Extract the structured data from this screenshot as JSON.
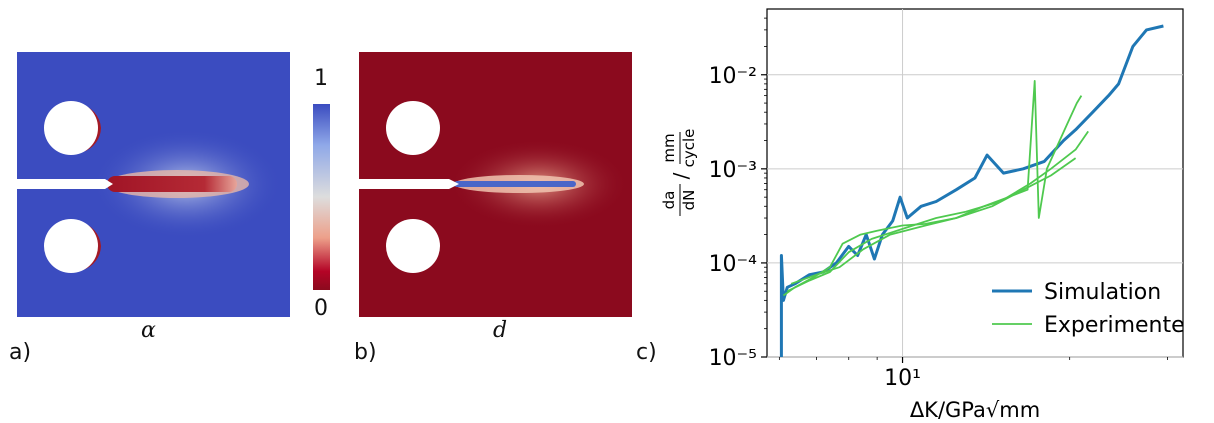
{
  "panels": {
    "a": {
      "label": "a)",
      "symbol": "α"
    },
    "b": {
      "label": "b)",
      "symbol": "d"
    },
    "c": {
      "label": "c)"
    }
  },
  "colorbar": {
    "max_label": "1",
    "min_label": "0"
  },
  "colors": {
    "field_blue": "#3b4cc0",
    "field_red": "#8b0a1e",
    "sim_line": "#1f77b4",
    "exp_line": "#4fc94f"
  },
  "chart_data": {
    "type": "line",
    "xscale": "log",
    "yscale": "log",
    "xlabel": "ΔK/GPa√mm",
    "ylabel": "da/dN / mm/cycle",
    "xlim": [
      5.7,
      32
    ],
    "ylim": [
      1e-05,
      0.05
    ],
    "x_ticks": [
      {
        "value": 10,
        "label": "10¹"
      }
    ],
    "y_ticks": [
      {
        "value": 1e-05,
        "label": "10⁻⁵"
      },
      {
        "value": 0.0001,
        "label": "10⁻⁴"
      },
      {
        "value": 0.001,
        "label": "10⁻³"
      },
      {
        "value": 0.01,
        "label": "10⁻²"
      }
    ],
    "grid": true,
    "legend_position": "bottom-right",
    "series": [
      {
        "name": "Simulation",
        "color": "#1f77b4",
        "points": [
          [
            6.05,
            1e-05
          ],
          [
            6.05,
            0.00012
          ],
          [
            6.1,
            4e-05
          ],
          [
            6.2,
            5.5e-05
          ],
          [
            6.4,
            6e-05
          ],
          [
            6.8,
            7.5e-05
          ],
          [
            7.2,
            8e-05
          ],
          [
            7.6,
            0.0001
          ],
          [
            8.0,
            0.00015
          ],
          [
            8.3,
            0.00012
          ],
          [
            8.6,
            0.0002
          ],
          [
            8.9,
            0.00011
          ],
          [
            9.2,
            0.0002
          ],
          [
            9.6,
            0.00028
          ],
          [
            9.9,
            0.0005
          ],
          [
            10.2,
            0.0003
          ],
          [
            10.8,
            0.0004
          ],
          [
            11.5,
            0.00045
          ],
          [
            12.5,
            0.0006
          ],
          [
            13.5,
            0.0008
          ],
          [
            14.2,
            0.0014
          ],
          [
            15.2,
            0.0009
          ],
          [
            16.5,
            0.001
          ],
          [
            18,
            0.0012
          ],
          [
            19.5,
            0.002
          ],
          [
            20.5,
            0.0026
          ],
          [
            22,
            0.004
          ],
          [
            23.5,
            0.006
          ],
          [
            24.5,
            0.008
          ],
          [
            26,
            0.02
          ],
          [
            27.5,
            0.03
          ],
          [
            29.5,
            0.033
          ]
        ]
      },
      {
        "name": "Experimente",
        "color": "#4fc94f",
        "points": [
          [
            6.1,
            4.5e-05
          ],
          [
            6.4,
            5.5e-05
          ],
          [
            6.9,
            7e-05
          ],
          [
            7.4,
            9e-05
          ],
          [
            7.8,
            0.00016
          ],
          [
            8.4,
            0.0002
          ],
          [
            9.0,
            0.00022
          ],
          [
            10,
            0.00025
          ],
          [
            11,
            0.00026
          ],
          [
            12.5,
            0.0003
          ],
          [
            14,
            0.0004
          ],
          [
            15.5,
            0.0005
          ],
          [
            16.8,
            0.0006
          ],
          [
            17.3,
            0.0086
          ],
          [
            17.6,
            0.0003
          ],
          [
            18.2,
            0.001
          ],
          [
            19.8,
            0.003
          ],
          [
            20.6,
            0.005
          ],
          [
            21,
            0.006
          ]
        ]
      },
      {
        "name": "",
        "color": "#4fc94f",
        "points": [
          [
            6.2,
            5e-05
          ],
          [
            6.8,
            6.5e-05
          ],
          [
            7.4,
            8e-05
          ],
          [
            8.0,
            0.00013
          ],
          [
            8.8,
            0.00018
          ],
          [
            10,
            0.00023
          ],
          [
            11.5,
            0.0003
          ],
          [
            13,
            0.00035
          ],
          [
            15,
            0.00045
          ],
          [
            17,
            0.0007
          ],
          [
            18.5,
            0.001
          ],
          [
            20.5,
            0.0016
          ],
          [
            21.6,
            0.0025
          ]
        ]
      },
      {
        "name": "",
        "color": "#4fc94f",
        "points": [
          [
            6.3,
            6e-05
          ],
          [
            7.0,
            7.5e-05
          ],
          [
            7.7,
            9e-05
          ],
          [
            8.5,
            0.00014
          ],
          [
            9.5,
            0.0002
          ],
          [
            11,
            0.00025
          ],
          [
            12.5,
            0.0003
          ],
          [
            14.5,
            0.0004
          ],
          [
            16.5,
            0.0006
          ],
          [
            18.5,
            0.00085
          ],
          [
            20.5,
            0.0013
          ]
        ]
      }
    ]
  }
}
